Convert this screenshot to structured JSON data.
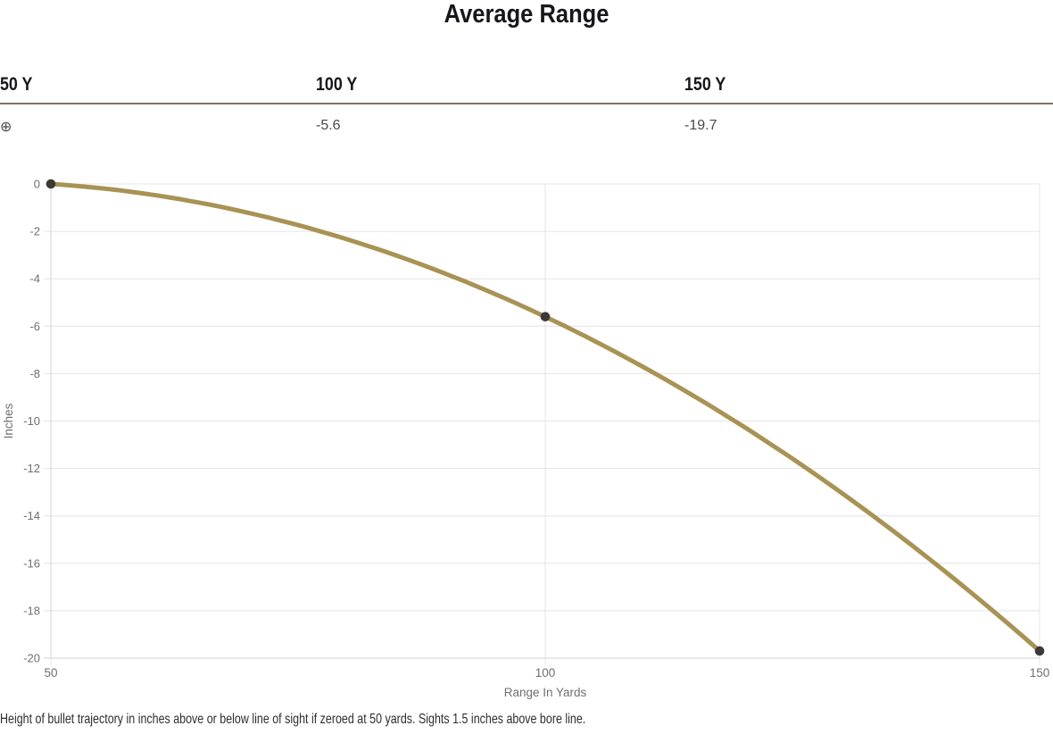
{
  "page": {
    "title": "Average Range",
    "footnote": "Height of bullet trajectory in inches above or below line of sight if zeroed at 50 yards. Sights 1.5 inches above bore line."
  },
  "table": {
    "columns": [
      {
        "header": "50 Y",
        "value": "⊕"
      },
      {
        "header": "100 Y",
        "value": "-5.6"
      },
      {
        "header": "150 Y",
        "value": "-19.7"
      }
    ]
  },
  "chart_data": {
    "type": "line",
    "title": "Average Range",
    "x": [
      50,
      100,
      150
    ],
    "series": [
      {
        "name": "Average Range",
        "values": [
          0,
          -5.6,
          -19.7
        ]
      }
    ],
    "xlabel": "Range In Yards",
    "ylabel": "Inches",
    "xlim": [
      50,
      150
    ],
    "ylim": [
      -20,
      0
    ],
    "x_ticks": [
      50,
      100,
      150
    ],
    "y_ticks": [
      0,
      -2,
      -4,
      -6,
      -8,
      -10,
      -12,
      -14,
      -16,
      -18,
      -20
    ],
    "grid": true,
    "legend": "none",
    "smooth": true,
    "line_color": "#a89355",
    "marker_color": "#3b3a37",
    "line_width": 5,
    "marker_radius": 5.3
  },
  "colors": {
    "rule": "#7d7363",
    "grid": "#e4e4e4",
    "axis": "#d2d2d2",
    "tick_label": "#6f6f6f",
    "title_text": "#17171b",
    "value_text": "#4a4a4a",
    "footnote_text": "#2e2e2e"
  }
}
